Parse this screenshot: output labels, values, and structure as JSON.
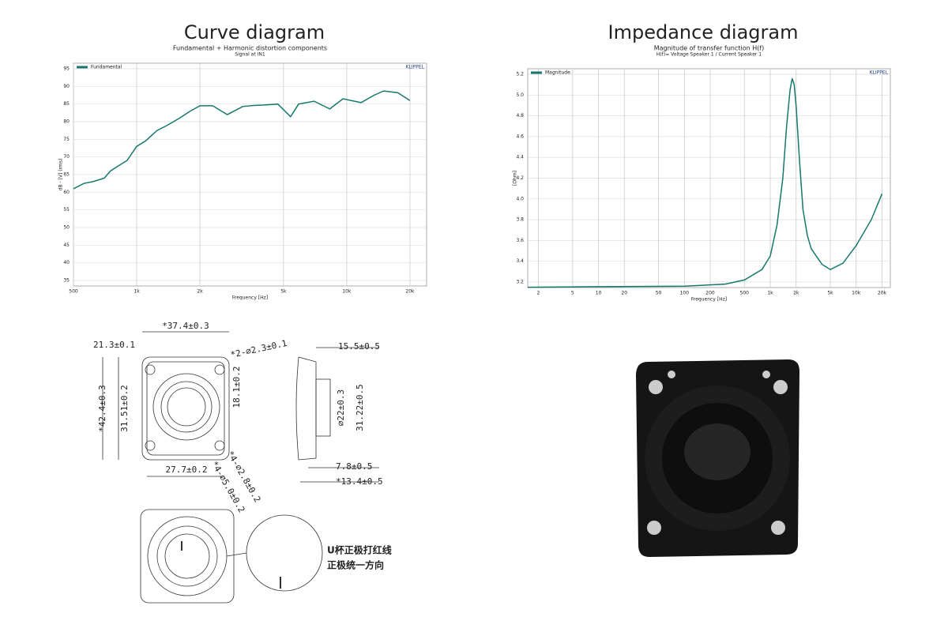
{
  "chart_data": [
    {
      "type": "line",
      "heading": "Curve diagram",
      "title": "Fundamental + Harmonic distortion components",
      "subtitle": "Signal at IN1",
      "brand": "KLIPPEL",
      "xlabel": "Frequency [Hz]",
      "ylabel": "dB - [V] (rms)",
      "xscale": "log",
      "grid": true,
      "legend": "top-left",
      "xlim": [
        500,
        24000
      ],
      "ylim": [
        35,
        95
      ],
      "xticks": [
        500,
        {
          "value": 1000,
          "label": "1k"
        },
        {
          "value": 2000,
          "label": "2k"
        },
        {
          "value": 5000,
          "label": "5k"
        },
        {
          "value": 10000,
          "label": "10k"
        },
        {
          "value": 20000,
          "label": "20k"
        }
      ],
      "yticks": [
        35,
        40,
        45,
        50,
        55,
        60,
        65,
        70,
        75,
        80,
        85,
        90,
        95
      ],
      "x": [
        500,
        560,
        620,
        700,
        750,
        820,
        900,
        1000,
        1100,
        1250,
        1400,
        1600,
        1800,
        2000,
        2300,
        2700,
        3200,
        3600,
        4000,
        4700,
        5400,
        5900,
        7000,
        8300,
        9600,
        11700,
        13500,
        15000,
        17500,
        20000
      ],
      "series": [
        {
          "name": "Fundamental",
          "color": "#16786c",
          "values": [
            61,
            62.5,
            63,
            64,
            66,
            67.5,
            69,
            73,
            74.5,
            77.5,
            79,
            81,
            83,
            84.5,
            84.5,
            82,
            84.3,
            84.6,
            84.7,
            85,
            81.4,
            85,
            85.8,
            83.6,
            86.5,
            85.4,
            87.5,
            88.7,
            88.2,
            86
          ]
        }
      ]
    },
    {
      "type": "line",
      "heading": "Impedance diagram",
      "title": "Magnitude of transfer function H(f)",
      "subtitle": "H(f)= Voltage Speaker 1 / Current Speaker 1",
      "brand": "KLIPPEL",
      "xlabel": "Frequency [Hz]",
      "ylabel": "[Ohm]",
      "xscale": "log",
      "grid": true,
      "legend": "top-left",
      "xlim": [
        1.5,
        25000
      ],
      "ylim": [
        3.2,
        5.2
      ],
      "xticks": [
        2,
        5,
        10,
        20,
        50,
        100,
        200,
        500,
        {
          "value": 1000,
          "label": "1k"
        },
        {
          "value": 2000,
          "label": "2k"
        },
        {
          "value": 5000,
          "label": "5k"
        },
        {
          "value": 10000,
          "label": "10k"
        },
        {
          "value": 20000,
          "label": "20k"
        }
      ],
      "yticks": [
        3.2,
        3.4,
        3.6,
        3.8,
        {
          "value": 4,
          "label": "4.0"
        },
        4.2,
        4.4,
        4.6,
        4.8,
        {
          "value": 5,
          "label": "5.0"
        },
        5.2
      ],
      "x": [
        1.5,
        10,
        100,
        300,
        500,
        800,
        1000,
        1200,
        1400,
        1550,
        1700,
        1800,
        1900,
        2000,
        2200,
        2400,
        2700,
        3000,
        4000,
        5000,
        7000,
        10000,
        15000,
        20000
      ],
      "series": [
        {
          "name": "Magnitude",
          "color": "#16786c",
          "values": [
            3.15,
            3.155,
            3.16,
            3.18,
            3.22,
            3.32,
            3.45,
            3.75,
            4.2,
            4.7,
            5.05,
            5.16,
            5.1,
            4.9,
            4.35,
            3.9,
            3.65,
            3.52,
            3.37,
            3.32,
            3.38,
            3.55,
            3.8,
            4.05
          ]
        }
      ]
    }
  ],
  "drawing": {
    "labels": [
      "*37.4±0.3",
      "21.3±0.1",
      "*2-∅2.3±0.1",
      "18.1±0.2",
      "*42.4±0.3",
      "31.51±0.2",
      "27.7±0.2",
      "*4-∅2.8±0.2",
      "*4-∅5.0±0.2",
      "15.5±0.5",
      "∅22±0.3",
      "31.22±0.5",
      "7.8±0.5",
      "*13.4±0.5",
      "U杯正极打红线",
      "正极统一方向"
    ]
  }
}
